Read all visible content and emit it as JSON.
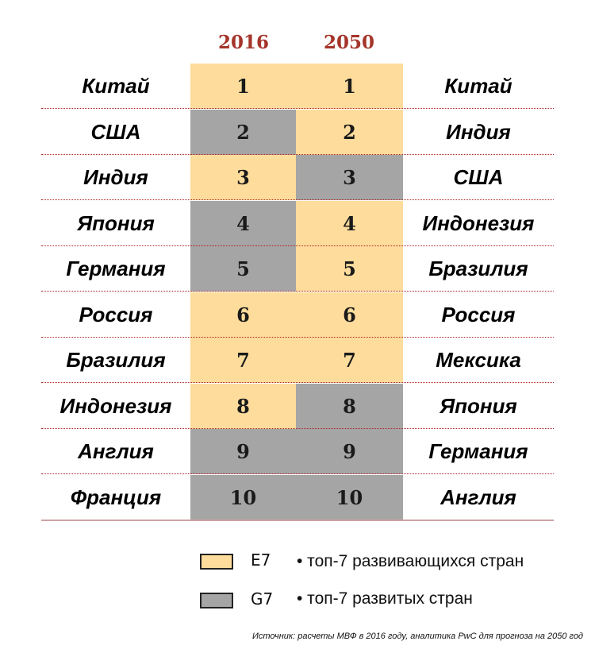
{
  "header": {
    "year_left": "2016",
    "year_right": "2050"
  },
  "colors": {
    "e7": "#fddc9c",
    "g7": "#a5a5a5",
    "year": "#a5342a",
    "separator": "#b22222"
  },
  "table": {
    "rows": [
      {
        "left_country": "Китай",
        "rank_2016": "1",
        "group_2016": "e7",
        "rank_2050": "1",
        "group_2050": "e7",
        "right_country": "Китай"
      },
      {
        "left_country": "США",
        "rank_2016": "2",
        "group_2016": "g7",
        "rank_2050": "2",
        "group_2050": "e7",
        "right_country": "Индия"
      },
      {
        "left_country": "Индия",
        "rank_2016": "3",
        "group_2016": "e7",
        "rank_2050": "3",
        "group_2050": "g7",
        "right_country": "США"
      },
      {
        "left_country": "Япония",
        "rank_2016": "4",
        "group_2016": "g7",
        "rank_2050": "4",
        "group_2050": "e7",
        "right_country": "Индонезия"
      },
      {
        "left_country": "Германия",
        "rank_2016": "5",
        "group_2016": "g7",
        "rank_2050": "5",
        "group_2050": "e7",
        "right_country": "Бразилия"
      },
      {
        "left_country": "Россия",
        "rank_2016": "6",
        "group_2016": "e7",
        "rank_2050": "6",
        "group_2050": "e7",
        "right_country": "Россия"
      },
      {
        "left_country": "Бразилия",
        "rank_2016": "7",
        "group_2016": "e7",
        "rank_2050": "7",
        "group_2050": "e7",
        "right_country": "Мексика"
      },
      {
        "left_country": "Индонезия",
        "rank_2016": "8",
        "group_2016": "e7",
        "rank_2050": "8",
        "group_2050": "g7",
        "right_country": "Япония"
      },
      {
        "left_country": "Англия",
        "rank_2016": "9",
        "group_2016": "g7",
        "rank_2050": "9",
        "group_2050": "g7",
        "right_country": "Германия"
      },
      {
        "left_country": "Франция",
        "rank_2016": "10",
        "group_2016": "g7",
        "rank_2050": "10",
        "group_2050": "g7",
        "right_country": "Англия"
      }
    ]
  },
  "legend": {
    "e7": {
      "label": "E7",
      "description": "• топ-7 развивающихся стран"
    },
    "g7": {
      "label": "G7",
      "description": "• топ-7 развитых стран"
    }
  },
  "source": "Источник: расчеты МВФ в 2016 году, аналитика PwC для прогноза на 2050 год"
}
